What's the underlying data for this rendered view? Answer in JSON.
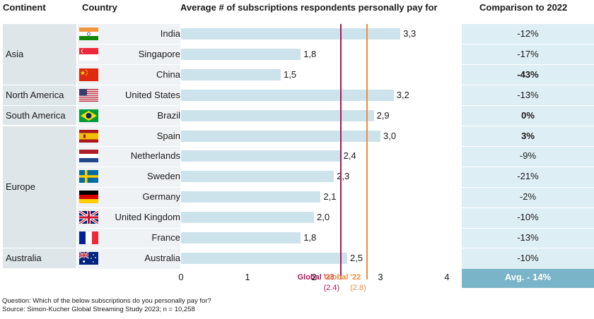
{
  "headers": {
    "continent": "Continent",
    "country": "Country",
    "chart": "Average # of subscriptions respondents personally pay for",
    "comparison": "Comparison to 2022"
  },
  "chart_data": {
    "type": "bar",
    "orientation": "horizontal",
    "title": "Average # of subscriptions respondents personally pay for",
    "xlim": [
      0,
      4
    ],
    "x_ticks": [
      "0",
      "1",
      "2",
      "3",
      "4"
    ],
    "rows": [
      {
        "continent": "Asia",
        "country": "India",
        "flag": "india-flag-icon",
        "value": 3.3,
        "label": "3,3",
        "comparison": "-12%",
        "bold": false
      },
      {
        "continent": "Asia",
        "country": "Singapore",
        "flag": "singapore-flag-icon",
        "value": 1.8,
        "label": "1,8",
        "comparison": "-17%",
        "bold": false
      },
      {
        "continent": "Asia",
        "country": "China",
        "flag": "china-flag-icon",
        "value": 1.5,
        "label": "1,5",
        "comparison": "-43%",
        "bold": true
      },
      {
        "continent": "North America",
        "country": "United States",
        "flag": "usa-flag-icon",
        "value": 3.2,
        "label": "3,2",
        "comparison": "-13%",
        "bold": false
      },
      {
        "continent": "South America",
        "country": "Brazil",
        "flag": "brazil-flag-icon",
        "value": 2.9,
        "label": "2,9",
        "comparison": "0%",
        "bold": true
      },
      {
        "continent": "Europe",
        "country": "Spain",
        "flag": "spain-flag-icon",
        "value": 3.0,
        "label": "3,0",
        "comparison": "3%",
        "bold": true
      },
      {
        "continent": "Europe",
        "country": "Netherlands",
        "flag": "netherlands-flag-icon",
        "value": 2.4,
        "label": "2,4",
        "comparison": "-9%",
        "bold": false
      },
      {
        "continent": "Europe",
        "country": "Sweden",
        "flag": "sweden-flag-icon",
        "value": 2.3,
        "label": "2,3",
        "comparison": "-21%",
        "bold": false
      },
      {
        "continent": "Europe",
        "country": "Germany",
        "flag": "germany-flag-icon",
        "value": 2.1,
        "label": "2,1",
        "comparison": "-2%",
        "bold": false
      },
      {
        "continent": "Europe",
        "country": "United Kingdom",
        "flag": "uk-flag-icon",
        "value": 2.0,
        "label": "2,0",
        "comparison": "-10%",
        "bold": false
      },
      {
        "continent": "Europe",
        "country": "France",
        "flag": "france-flag-icon",
        "value": 1.8,
        "label": "1,8",
        "comparison": "-13%",
        "bold": false
      },
      {
        "continent": "Australia",
        "country": "Australia",
        "flag": "australia-flag-icon",
        "value": 2.5,
        "label": "2,5",
        "comparison": "-10%",
        "bold": false
      }
    ],
    "continents": [
      {
        "name": "Asia",
        "start": 0,
        "count": 3
      },
      {
        "name": "North America",
        "start": 3,
        "count": 1
      },
      {
        "name": "South America",
        "start": 4,
        "count": 1
      },
      {
        "name": "Europe",
        "start": 5,
        "count": 6
      },
      {
        "name": "Australia",
        "start": 11,
        "count": 1
      }
    ],
    "reference_lines": [
      {
        "name": "Global '23",
        "value": 2.4,
        "value_label": "(2.4)",
        "color": "#b0155a"
      },
      {
        "name": "Global '22",
        "value": 2.8,
        "value_label": "(2.8)",
        "color": "#f08a3c"
      }
    ],
    "average": "Avg. - 14%"
  },
  "notes": {
    "question": "Question: Which of the below subscriptions do you personally pay for?",
    "source": "Source: Simon-Kucher Global Streaming Study 2023; n = 10,258"
  },
  "colors": {
    "bar": "#cde3ec",
    "continent_bg": "#dfe6ea",
    "country_bg": "#eef2f4",
    "comparison_bg": "#ddeef5",
    "average_bg": "#79b4c8"
  }
}
